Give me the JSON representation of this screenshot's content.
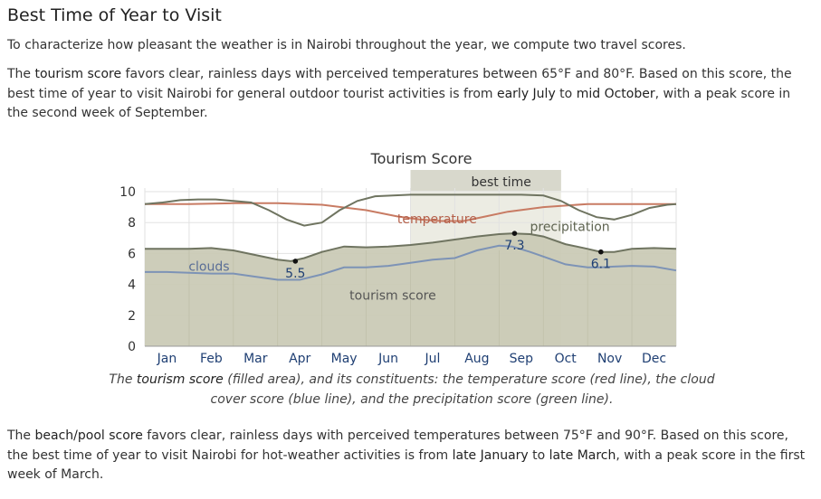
{
  "heading": "Best Time of Year to Visit",
  "intro": "To characterize how pleasant the weather is in Nairobi throughout the year, we compute two travel scores.",
  "tourism_paragraph": {
    "p1": "The ",
    "score_name": "tourism score",
    "p2": " favors clear, rainless days with perceived temperatures between 65°F and 80°F. Based on this score, the best time of year to visit Nairobi for general outdoor tourist activities is from ",
    "start": "early July",
    "p3": " to ",
    "end": "mid October",
    "p4": ", with a peak score in the second week of September."
  },
  "caption": {
    "c1": "The ",
    "score_name": "tourism score",
    "c2": " (filled area), and its constituents: the temperature score (red line), the cloud cover score (blue line), and the precipitation score (green line)."
  },
  "beach_paragraph": {
    "p1": "The ",
    "score_name": "beach/pool score",
    "p2": " favors clear, rainless days with perceived temperatures between 75°F and 90°F. Based on this score, the best time of year to visit Nairobi for hot-weather activities is from ",
    "start": "late January",
    "p3": " to ",
    "end": "late March",
    "p4": ", with a peak score in the first week of March."
  },
  "chart_data": {
    "type": "area",
    "title": "Tourism Score",
    "ylim": [
      0,
      10
    ],
    "yticks": [
      "0",
      "2",
      "4",
      "6",
      "8",
      "10"
    ],
    "xlim": [
      0,
      12
    ],
    "month_labels": [
      "Jan",
      "Feb",
      "Mar",
      "Apr",
      "May",
      "Jun",
      "Jul",
      "Aug",
      "Sep",
      "Oct",
      "Nov",
      "Dec"
    ],
    "grid": true,
    "best_time": {
      "label": "best time",
      "start": 6.0,
      "end": 9.4
    },
    "series": {
      "tourism": {
        "name": "tourism score",
        "color": "#6f7460",
        "fill": "#c9c9b4",
        "points": [
          [
            0,
            6.3
          ],
          [
            0.5,
            6.3
          ],
          [
            1.0,
            6.3
          ],
          [
            1.5,
            6.35
          ],
          [
            2.0,
            6.2
          ],
          [
            2.5,
            5.9
          ],
          [
            3.0,
            5.6
          ],
          [
            3.3,
            5.5
          ],
          [
            3.6,
            5.7
          ],
          [
            4.0,
            6.1
          ],
          [
            4.5,
            6.45
          ],
          [
            5.0,
            6.4
          ],
          [
            5.5,
            6.45
          ],
          [
            6.0,
            6.55
          ],
          [
            6.5,
            6.7
          ],
          [
            7.0,
            6.9
          ],
          [
            7.5,
            7.1
          ],
          [
            8.0,
            7.25
          ],
          [
            8.3,
            7.3
          ],
          [
            8.7,
            7.25
          ],
          [
            9.0,
            7.1
          ],
          [
            9.5,
            6.6
          ],
          [
            10.0,
            6.3
          ],
          [
            10.3,
            6.1
          ],
          [
            10.6,
            6.1
          ],
          [
            11.0,
            6.3
          ],
          [
            11.5,
            6.35
          ],
          [
            12.0,
            6.3
          ]
        ]
      },
      "temperature": {
        "name": "temperature",
        "color": "#c87b63",
        "points": [
          [
            0,
            9.2
          ],
          [
            1.0,
            9.2
          ],
          [
            2.0,
            9.25
          ],
          [
            3.0,
            9.25
          ],
          [
            4.0,
            9.15
          ],
          [
            5.0,
            8.8
          ],
          [
            5.7,
            8.4
          ],
          [
            6.2,
            8.2
          ],
          [
            6.7,
            8.1
          ],
          [
            7.2,
            8.1
          ],
          [
            7.7,
            8.4
          ],
          [
            8.2,
            8.7
          ],
          [
            9.0,
            9.0
          ],
          [
            10.0,
            9.2
          ],
          [
            11.0,
            9.2
          ],
          [
            12.0,
            9.2
          ]
        ]
      },
      "precipitation": {
        "name": "precipitation",
        "color": "#6f7460",
        "points": [
          [
            0,
            9.2
          ],
          [
            0.4,
            9.3
          ],
          [
            0.8,
            9.45
          ],
          [
            1.2,
            9.5
          ],
          [
            1.6,
            9.5
          ],
          [
            2.0,
            9.4
          ],
          [
            2.4,
            9.3
          ],
          [
            2.8,
            8.8
          ],
          [
            3.2,
            8.2
          ],
          [
            3.6,
            7.8
          ],
          [
            4.0,
            8.0
          ],
          [
            4.4,
            8.8
          ],
          [
            4.8,
            9.4
          ],
          [
            5.2,
            9.7
          ],
          [
            5.6,
            9.75
          ],
          [
            6.0,
            9.8
          ],
          [
            6.5,
            9.8
          ],
          [
            7.0,
            9.8
          ],
          [
            7.5,
            9.8
          ],
          [
            8.0,
            9.8
          ],
          [
            8.5,
            9.8
          ],
          [
            9.0,
            9.75
          ],
          [
            9.4,
            9.4
          ],
          [
            9.8,
            8.8
          ],
          [
            10.2,
            8.35
          ],
          [
            10.6,
            8.2
          ],
          [
            11.0,
            8.5
          ],
          [
            11.4,
            8.95
          ],
          [
            11.8,
            9.15
          ],
          [
            12.0,
            9.2
          ]
        ]
      },
      "clouds": {
        "name": "clouds",
        "color": "#7d93b6",
        "points": [
          [
            0,
            4.8
          ],
          [
            0.5,
            4.8
          ],
          [
            1.0,
            4.75
          ],
          [
            1.5,
            4.7
          ],
          [
            2.0,
            4.7
          ],
          [
            2.5,
            4.5
          ],
          [
            3.0,
            4.3
          ],
          [
            3.5,
            4.3
          ],
          [
            4.0,
            4.65
          ],
          [
            4.5,
            5.1
          ],
          [
            5.0,
            5.1
          ],
          [
            5.5,
            5.2
          ],
          [
            6.0,
            5.4
          ],
          [
            6.5,
            5.6
          ],
          [
            7.0,
            5.7
          ],
          [
            7.5,
            6.2
          ],
          [
            8.0,
            6.5
          ],
          [
            8.3,
            6.45
          ],
          [
            8.7,
            6.1
          ],
          [
            9.0,
            5.8
          ],
          [
            9.5,
            5.3
          ],
          [
            10.0,
            5.1
          ],
          [
            10.3,
            5.1
          ],
          [
            10.6,
            5.15
          ],
          [
            11.0,
            5.2
          ],
          [
            11.5,
            5.15
          ],
          [
            12.0,
            4.9
          ]
        ]
      }
    },
    "series_labels": {
      "clouds": "clouds",
      "temperature": "temperature",
      "precipitation": "precipitation",
      "tourism": "tourism score"
    },
    "markers": [
      {
        "x": 3.4,
        "y": 5.5,
        "label": "5.5"
      },
      {
        "x": 8.35,
        "y": 7.3,
        "label": "7.3"
      },
      {
        "x": 10.3,
        "y": 6.1,
        "label": "6.1"
      }
    ]
  }
}
